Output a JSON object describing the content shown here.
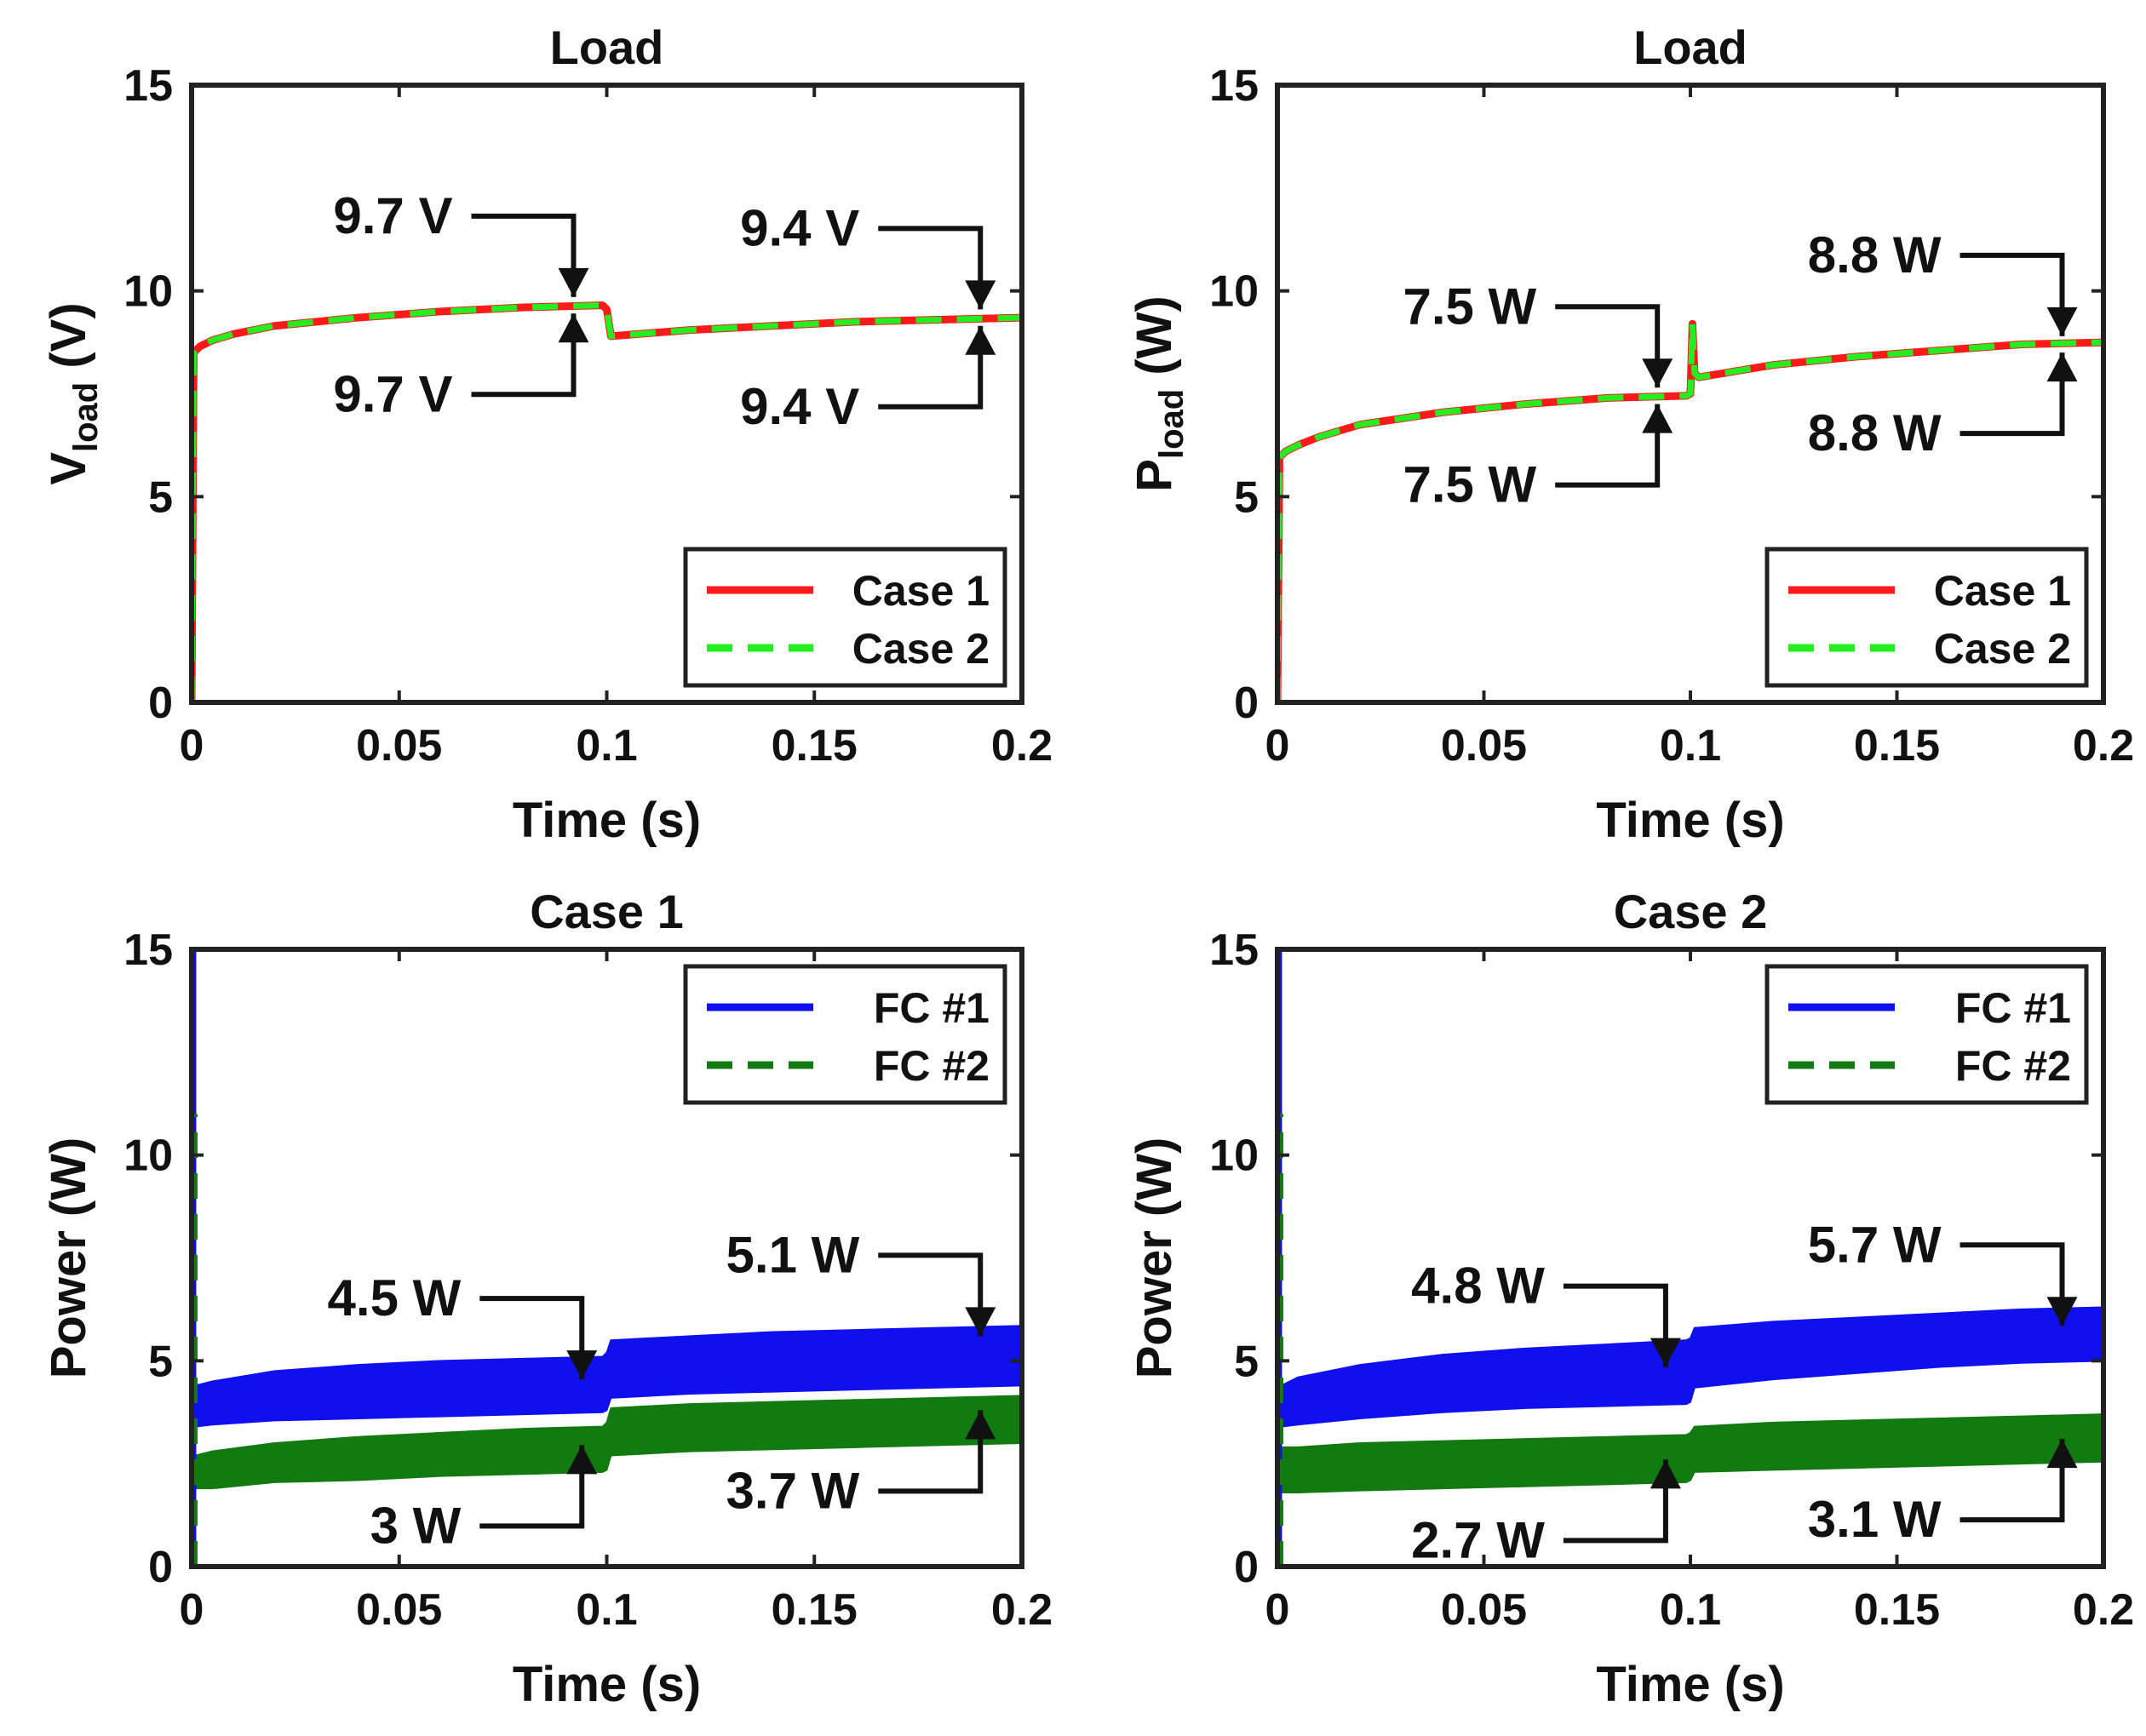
{
  "chart_data": [
    {
      "type": "line",
      "title": "Load",
      "xlabel": "Time (s)",
      "ylabel_main": "V",
      "ylabel_sub": "load",
      "ylabel_unit": " (V)",
      "xlim": [
        0,
        0.2
      ],
      "ylim": [
        0,
        15
      ],
      "xticks": [
        0,
        0.05,
        0.1,
        0.15,
        0.2
      ],
      "xtick_labels": [
        "0",
        "0.05",
        "0.1",
        "0.15",
        "0.2"
      ],
      "yticks": [
        0,
        5,
        10,
        15
      ],
      "ytick_labels": [
        "0",
        "5",
        "10",
        "15"
      ],
      "legend_position": "bottom-right",
      "series": [
        {
          "name": "Case 1",
          "color": "#ff1a1a",
          "style": "solid",
          "x": [
            0,
            0.0005,
            0.001,
            0.002,
            0.005,
            0.01,
            0.02,
            0.04,
            0.06,
            0.08,
            0.099,
            0.1,
            0.101,
            0.12,
            0.14,
            0.16,
            0.18,
            0.2
          ],
          "y": [
            0,
            8.5,
            8.55,
            8.65,
            8.8,
            8.95,
            9.15,
            9.35,
            9.5,
            9.6,
            9.65,
            9.55,
            8.9,
            9.05,
            9.15,
            9.25,
            9.3,
            9.35
          ]
        },
        {
          "name": "Case 2",
          "color": "#22ee22",
          "style": "dashed",
          "x": [
            0,
            0.0005,
            0.001,
            0.002,
            0.005,
            0.01,
            0.02,
            0.04,
            0.06,
            0.08,
            0.099,
            0.1,
            0.101,
            0.12,
            0.14,
            0.16,
            0.18,
            0.2
          ],
          "y": [
            0,
            8.5,
            8.55,
            8.65,
            8.8,
            8.95,
            9.15,
            9.35,
            9.5,
            9.6,
            9.65,
            9.55,
            8.9,
            9.05,
            9.15,
            9.25,
            9.3,
            9.35
          ]
        }
      ],
      "annotations": [
        {
          "text": "9.7 V",
          "x": 0.092,
          "y": 9.85,
          "side": "top"
        },
        {
          "text": "9.7 V",
          "x": 0.092,
          "y": 9.45,
          "side": "bottom"
        },
        {
          "text": "9.4 V",
          "x": 0.19,
          "y": 9.55,
          "side": "top"
        },
        {
          "text": "9.4 V",
          "x": 0.19,
          "y": 9.15,
          "side": "bottom"
        }
      ]
    },
    {
      "type": "line",
      "title": "Load",
      "xlabel": "Time (s)",
      "ylabel_main": "P",
      "ylabel_sub": "load",
      "ylabel_unit": " (W)",
      "xlim": [
        0,
        0.2
      ],
      "ylim": [
        0,
        15
      ],
      "xticks": [
        0,
        0.05,
        0.1,
        0.15,
        0.2
      ],
      "xtick_labels": [
        "0",
        "0.05",
        "0.1",
        "0.15",
        "0.2"
      ],
      "yticks": [
        0,
        5,
        10,
        15
      ],
      "ytick_labels": [
        "0",
        "5",
        "10",
        "15"
      ],
      "legend_position": "bottom-right",
      "series": [
        {
          "name": "Case 1",
          "color": "#ff1a1a",
          "style": "solid",
          "x": [
            0,
            0.0005,
            0.001,
            0.002,
            0.005,
            0.01,
            0.02,
            0.04,
            0.06,
            0.08,
            0.099,
            0.1,
            0.1005,
            0.101,
            0.102,
            0.12,
            0.14,
            0.16,
            0.18,
            0.2
          ],
          "y": [
            0,
            5.95,
            6.0,
            6.1,
            6.25,
            6.45,
            6.75,
            7.05,
            7.25,
            7.4,
            7.45,
            7.5,
            9.2,
            8.0,
            7.9,
            8.2,
            8.4,
            8.55,
            8.7,
            8.75
          ]
        },
        {
          "name": "Case 2",
          "color": "#22ee22",
          "style": "dashed",
          "x": [
            0,
            0.0005,
            0.001,
            0.002,
            0.005,
            0.01,
            0.02,
            0.04,
            0.06,
            0.08,
            0.099,
            0.1,
            0.1005,
            0.101,
            0.102,
            0.12,
            0.14,
            0.16,
            0.18,
            0.2
          ],
          "y": [
            0,
            5.95,
            6.0,
            6.1,
            6.25,
            6.45,
            6.75,
            7.05,
            7.25,
            7.4,
            7.45,
            7.5,
            9.2,
            8.0,
            7.9,
            8.2,
            8.4,
            8.55,
            8.7,
            8.75
          ]
        }
      ],
      "annotations": [
        {
          "text": "7.5 W",
          "x": 0.092,
          "y": 7.65,
          "side": "top"
        },
        {
          "text": "7.5 W",
          "x": 0.092,
          "y": 7.25,
          "side": "bottom"
        },
        {
          "text": "8.8 W",
          "x": 0.19,
          "y": 8.9,
          "side": "top"
        },
        {
          "text": "8.8 W",
          "x": 0.19,
          "y": 8.5,
          "side": "bottom"
        }
      ]
    },
    {
      "type": "area",
      "title": "Case 1",
      "xlabel": "Time (s)",
      "ylabel_main": "Power (W)",
      "ylabel_sub": "",
      "ylabel_unit": "",
      "xlim": [
        0,
        0.2
      ],
      "ylim": [
        0,
        15
      ],
      "xticks": [
        0,
        0.05,
        0.1,
        0.15,
        0.2
      ],
      "xtick_labels": [
        "0",
        "0.05",
        "0.1",
        "0.15",
        "0.2"
      ],
      "yticks": [
        0,
        5,
        10,
        15
      ],
      "ytick_labels": [
        "0",
        "5",
        "10",
        "15"
      ],
      "legend_position": "top-right",
      "series": [
        {
          "name": "FC #1",
          "color": "#1010ee",
          "style": "solid",
          "x": [
            0.001,
            0.005,
            0.02,
            0.04,
            0.06,
            0.08,
            0.099,
            0.1,
            0.101,
            0.12,
            0.14,
            0.16,
            0.18,
            0.2
          ],
          "upper": [
            4.4,
            4.5,
            4.75,
            4.9,
            5.0,
            5.05,
            5.1,
            5.2,
            5.5,
            5.6,
            5.7,
            5.75,
            5.8,
            5.85
          ],
          "lower": [
            3.4,
            3.45,
            3.55,
            3.6,
            3.65,
            3.7,
            3.75,
            3.8,
            4.1,
            4.2,
            4.25,
            4.3,
            4.35,
            4.4
          ]
        },
        {
          "name": "FC #2",
          "color": "#117a11",
          "style": "dashed",
          "x": [
            0.001,
            0.005,
            0.02,
            0.04,
            0.06,
            0.08,
            0.099,
            0.1,
            0.101,
            0.12,
            0.14,
            0.16,
            0.18,
            0.2
          ],
          "upper": [
            2.7,
            2.8,
            3.0,
            3.15,
            3.25,
            3.35,
            3.4,
            3.5,
            3.85,
            3.95,
            4.0,
            4.05,
            4.1,
            4.15
          ],
          "lower": [
            1.9,
            1.9,
            2.05,
            2.1,
            2.2,
            2.25,
            2.3,
            2.35,
            2.7,
            2.8,
            2.85,
            2.9,
            2.95,
            3.0
          ]
        }
      ],
      "spike": {
        "x": 0.0003,
        "y_top": 15
      },
      "annotations": [
        {
          "text": "4.5 W",
          "x": 0.094,
          "y": 4.55,
          "side": "top"
        },
        {
          "text": "5.1 W",
          "x": 0.19,
          "y": 5.6,
          "side": "top"
        },
        {
          "text": "3 W",
          "x": 0.094,
          "y": 2.95,
          "side": "bottom"
        },
        {
          "text": "3.7 W",
          "x": 0.19,
          "y": 3.8,
          "side": "bottom"
        }
      ]
    },
    {
      "type": "area",
      "title": "Case 2",
      "xlabel": "Time (s)",
      "ylabel_main": "Power (W)",
      "ylabel_sub": "",
      "ylabel_unit": "",
      "xlim": [
        0,
        0.2
      ],
      "ylim": [
        0,
        15
      ],
      "xticks": [
        0,
        0.05,
        0.1,
        0.15,
        0.2
      ],
      "xtick_labels": [
        "0",
        "0.05",
        "0.1",
        "0.15",
        "0.2"
      ],
      "yticks": [
        0,
        5,
        10,
        15
      ],
      "ytick_labels": [
        "0",
        "5",
        "10",
        "15"
      ],
      "legend_position": "top-right",
      "series": [
        {
          "name": "FC #1",
          "color": "#1010ee",
          "style": "solid",
          "x": [
            0.001,
            0.005,
            0.02,
            0.04,
            0.06,
            0.08,
            0.099,
            0.1,
            0.101,
            0.12,
            0.14,
            0.16,
            0.18,
            0.2
          ],
          "upper": [
            4.4,
            4.6,
            4.9,
            5.15,
            5.3,
            5.4,
            5.5,
            5.55,
            5.8,
            5.95,
            6.05,
            6.15,
            6.25,
            6.3
          ],
          "lower": [
            3.4,
            3.45,
            3.6,
            3.75,
            3.85,
            3.9,
            3.95,
            4.0,
            4.35,
            4.55,
            4.7,
            4.85,
            4.95,
            5.0
          ]
        },
        {
          "name": "FC #2",
          "color": "#117a11",
          "style": "dashed",
          "x": [
            0.001,
            0.005,
            0.02,
            0.04,
            0.06,
            0.08,
            0.099,
            0.1,
            0.101,
            0.12,
            0.14,
            0.16,
            0.18,
            0.2
          ],
          "upper": [
            2.9,
            2.9,
            3.0,
            3.05,
            3.1,
            3.15,
            3.2,
            3.25,
            3.4,
            3.5,
            3.55,
            3.6,
            3.65,
            3.7
          ],
          "lower": [
            1.8,
            1.8,
            1.85,
            1.9,
            1.95,
            2.0,
            2.05,
            2.1,
            2.3,
            2.35,
            2.4,
            2.45,
            2.5,
            2.55
          ]
        }
      ],
      "spike": {
        "x": 0.0003,
        "y_top": 15
      },
      "annotations": [
        {
          "text": "4.8 W",
          "x": 0.094,
          "y": 4.85,
          "side": "top"
        },
        {
          "text": "5.7 W",
          "x": 0.19,
          "y": 5.85,
          "side": "top"
        },
        {
          "text": "2.7 W",
          "x": 0.094,
          "y": 2.6,
          "side": "bottom"
        },
        {
          "text": "3.1 W",
          "x": 0.19,
          "y": 3.1,
          "side": "bottom"
        }
      ]
    }
  ]
}
